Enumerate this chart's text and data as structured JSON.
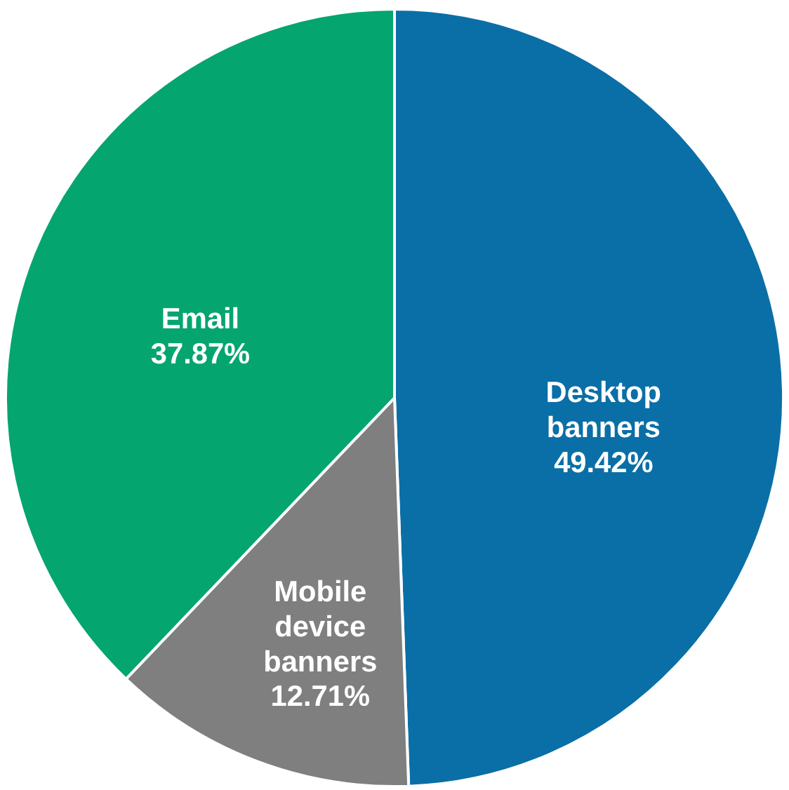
{
  "chart_data": {
    "type": "pie",
    "categories": [
      "Desktop banners",
      "Mobile device banners",
      "Email"
    ],
    "values": [
      49.42,
      12.71,
      37.87
    ],
    "colors": [
      "#0a6fa6",
      "#7f7f7f",
      "#05a56f"
    ],
    "value_labels": [
      "49.42%",
      "12.71%",
      "37.87%"
    ],
    "legend": false
  }
}
